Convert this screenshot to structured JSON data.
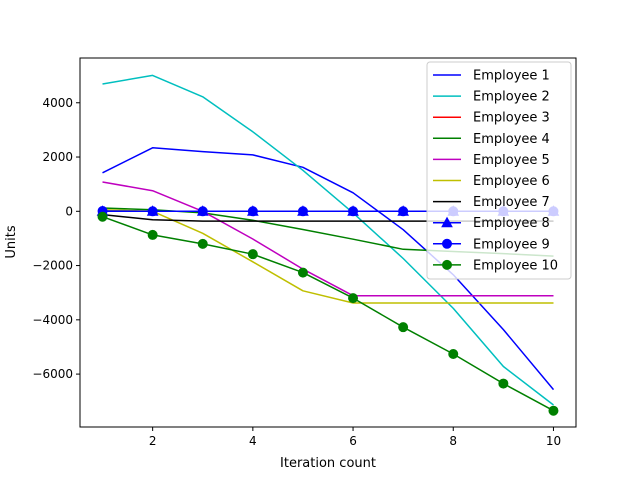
{
  "chart_data": {
    "type": "line",
    "title": "",
    "xlabel": "Iteration count",
    "ylabel": "Units",
    "xlim": [
      0.55,
      10.45
    ],
    "ylim": [
      -7950,
      5650
    ],
    "xticks": [
      2,
      4,
      6,
      8,
      10
    ],
    "yticks": [
      -6000,
      -4000,
      -2000,
      0,
      2000,
      4000
    ],
    "grid": false,
    "legend_position": "top-right",
    "x": [
      1,
      2,
      3,
      4,
      5,
      6,
      7,
      8,
      9,
      10
    ],
    "series": [
      {
        "name": "Employee 1",
        "color": "#0000ff",
        "marker": "none",
        "values": [
          1420,
          2340,
          2200,
          2080,
          1620,
          680,
          -680,
          -2340,
          -4360,
          -6570
        ]
      },
      {
        "name": "Employee 2",
        "color": "#00bfbf",
        "marker": "none",
        "values": [
          4690,
          5010,
          4220,
          2930,
          1510,
          -60,
          -1740,
          -3580,
          -5720,
          -7140
        ]
      },
      {
        "name": "Employee 3",
        "color": "#ff0000",
        "marker": "none",
        "values": [
          0,
          0,
          0,
          0,
          0,
          0,
          0,
          0,
          0,
          0
        ]
      },
      {
        "name": "Employee 4",
        "color": "#008000",
        "marker": "none",
        "values": [
          120,
          60,
          -60,
          -330,
          -670,
          -1030,
          -1400,
          -1480,
          -1560,
          -1650
        ]
      },
      {
        "name": "Employee 5",
        "color": "#bf00bf",
        "marker": "none",
        "values": [
          1080,
          760,
          0,
          -1020,
          -2130,
          -3110,
          -3110,
          -3110,
          -3110,
          -3110
        ]
      },
      {
        "name": "Employee 6",
        "color": "#bfbf00",
        "marker": "none",
        "values": [
          60,
          0,
          -810,
          -1860,
          -2930,
          -3380,
          -3380,
          -3380,
          -3380,
          -3380
        ]
      },
      {
        "name": "Employee 7",
        "color": "#000000",
        "marker": "none",
        "values": [
          -120,
          -310,
          -360,
          -360,
          -360,
          -360,
          -360,
          -360,
          -360,
          -360
        ]
      },
      {
        "name": "Employee 8",
        "color": "#0000ff",
        "marker": "triangle",
        "values": [
          0,
          0,
          0,
          0,
          0,
          0,
          0,
          0,
          0,
          0
        ]
      },
      {
        "name": "Employee 9",
        "color": "#0000ff",
        "marker": "circle",
        "values": [
          10,
          0,
          0,
          0,
          0,
          0,
          0,
          0,
          0,
          0
        ]
      },
      {
        "name": "Employee 10",
        "color": "#008000",
        "marker": "circle",
        "values": [
          -200,
          -870,
          -1200,
          -1580,
          -2260,
          -3200,
          -4270,
          -5260,
          -6350,
          -7350
        ]
      }
    ]
  }
}
